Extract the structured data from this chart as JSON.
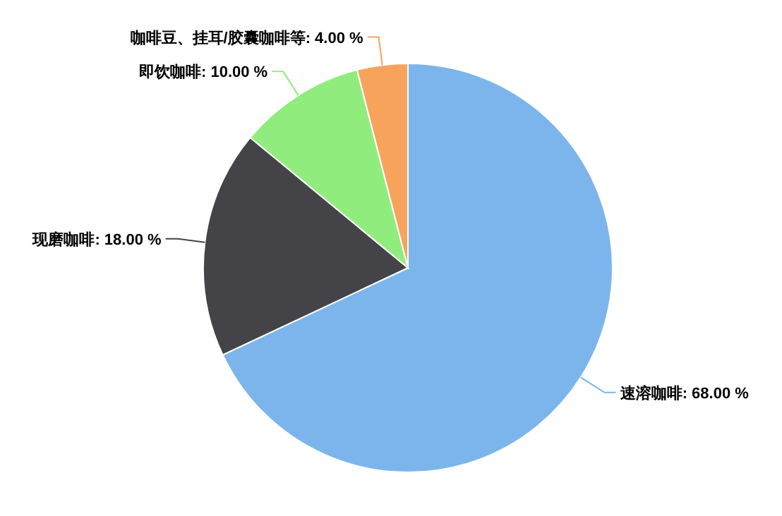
{
  "chart_data": {
    "type": "pie",
    "categories": [
      "速溶咖啡",
      "现磨咖啡",
      "即饮咖啡",
      "咖啡豆、挂耳/胶囊咖啡等"
    ],
    "values": [
      68,
      18,
      10,
      4
    ],
    "colors": [
      "#7cb5ec",
      "#434348",
      "#90ed7d",
      "#f7a35c"
    ],
    "value_labels": [
      "68.00 %",
      "18.00 %",
      "10.00 %",
      "4.00 %"
    ]
  }
}
